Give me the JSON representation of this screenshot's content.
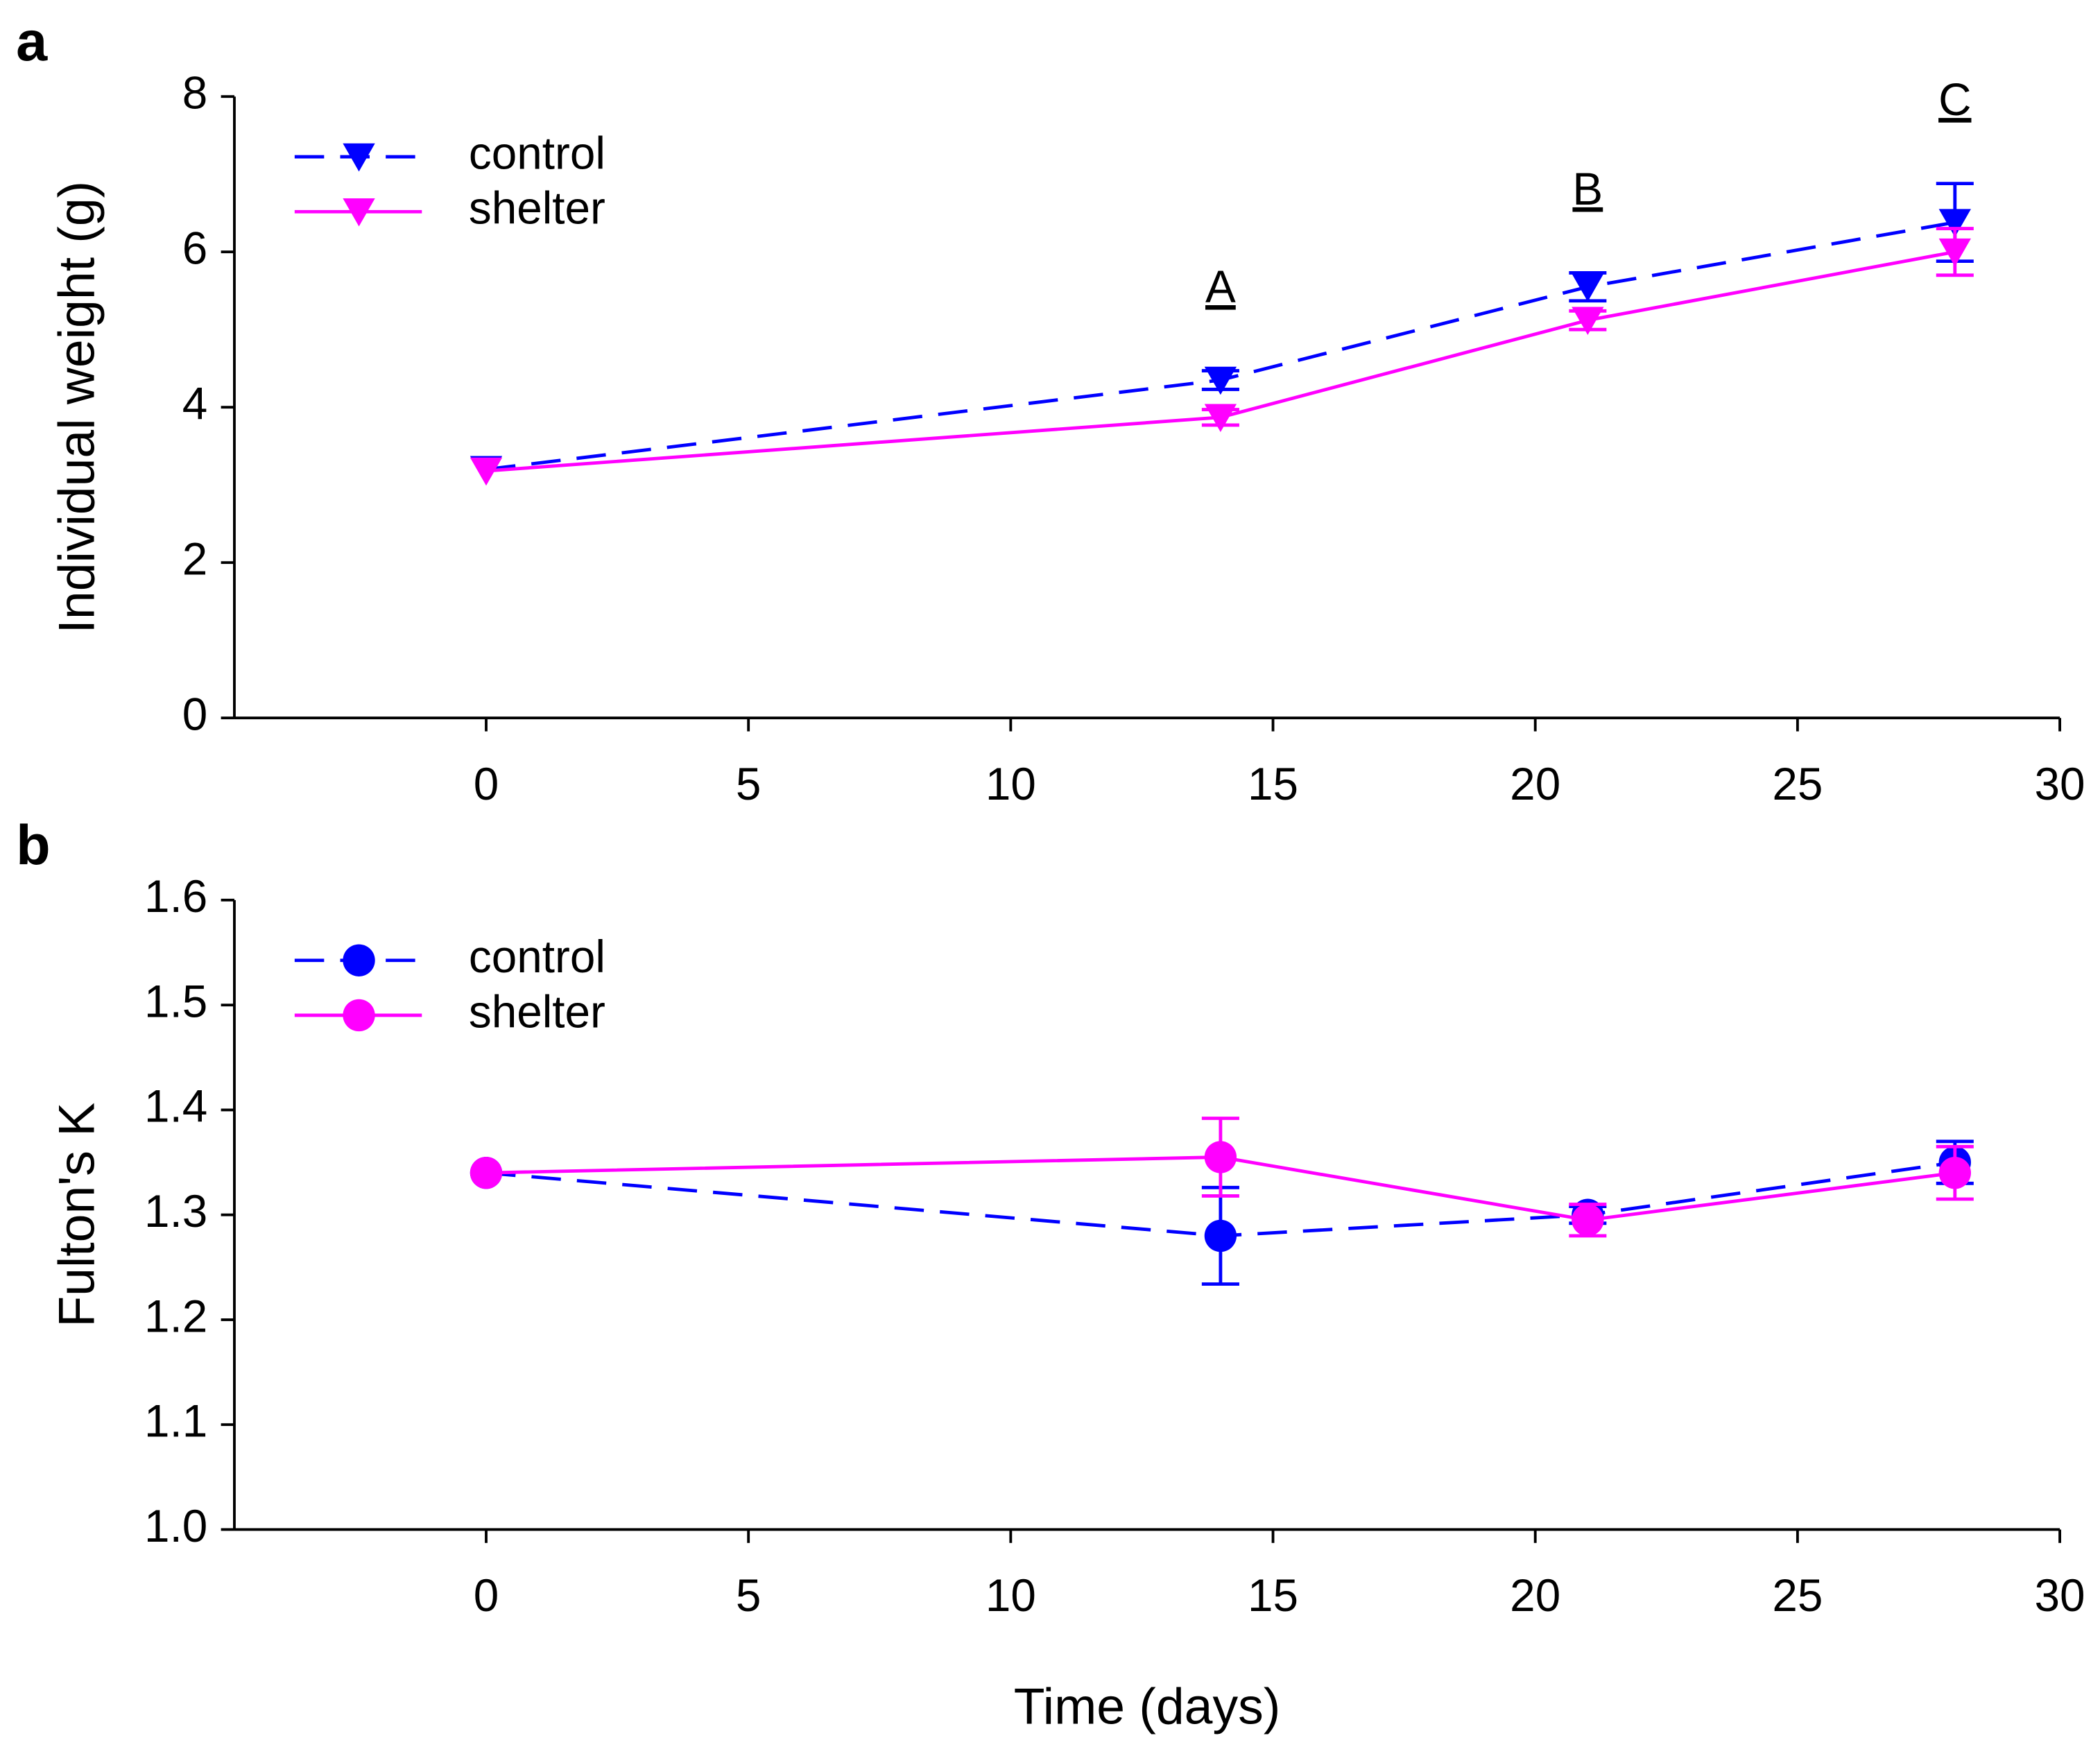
{
  "chart_data": [
    {
      "type": "line",
      "panel_label": "a",
      "ylabel": "Individual weight (g)",
      "x": [
        0,
        14,
        21,
        28
      ],
      "xlim": [
        -4.8,
        30
      ],
      "xticks": [
        0,
        5,
        10,
        15,
        20,
        25,
        30
      ],
      "ylim": [
        0,
        8
      ],
      "yticks": [
        0,
        2,
        4,
        6,
        8
      ],
      "legend": "upper left",
      "series": [
        {
          "name": "control",
          "color": "#0000ff",
          "linestyle": "dashed",
          "marker": "triangle-down",
          "values": [
            3.2,
            4.35,
            5.55,
            6.38
          ],
          "errors": [
            null,
            0.12,
            0.18,
            0.5
          ]
        },
        {
          "name": "shelter",
          "color": "#ff00ff",
          "linestyle": "solid",
          "marker": "triangle-down",
          "values": [
            3.18,
            3.87,
            5.12,
            6.0
          ],
          "errors": [
            null,
            0.1,
            0.12,
            0.3
          ]
        }
      ],
      "annotations": [
        {
          "text": "A",
          "x": 14
        },
        {
          "text": "B",
          "x": 21
        },
        {
          "text": "C",
          "x": 28
        }
      ]
    },
    {
      "type": "line",
      "panel_label": "b",
      "ylabel": "Fulton's K",
      "xlabel": "Time (days)",
      "x": [
        0,
        14,
        21,
        28
      ],
      "xlim": [
        -4.8,
        30
      ],
      "xticks": [
        0,
        5,
        10,
        15,
        20,
        25,
        30
      ],
      "ylim": [
        1.0,
        1.6
      ],
      "yticks": [
        {
          "value": 1.0,
          "label": "1.0"
        },
        1.1,
        1.2,
        1.3,
        1.4,
        1.5,
        1.6
      ],
      "legend": "upper left",
      "series": [
        {
          "name": "control",
          "color": "#0000ff",
          "linestyle": "dashed",
          "marker": "circle",
          "values": [
            1.34,
            1.28,
            1.3,
            1.35
          ],
          "errors": [
            null,
            0.046,
            0.008,
            0.02
          ]
        },
        {
          "name": "shelter",
          "color": "#ff00ff",
          "linestyle": "solid",
          "marker": "circle",
          "values": [
            1.34,
            1.355,
            1.295,
            1.34
          ],
          "errors": [
            null,
            0.037,
            0.015,
            0.025
          ]
        }
      ]
    }
  ]
}
